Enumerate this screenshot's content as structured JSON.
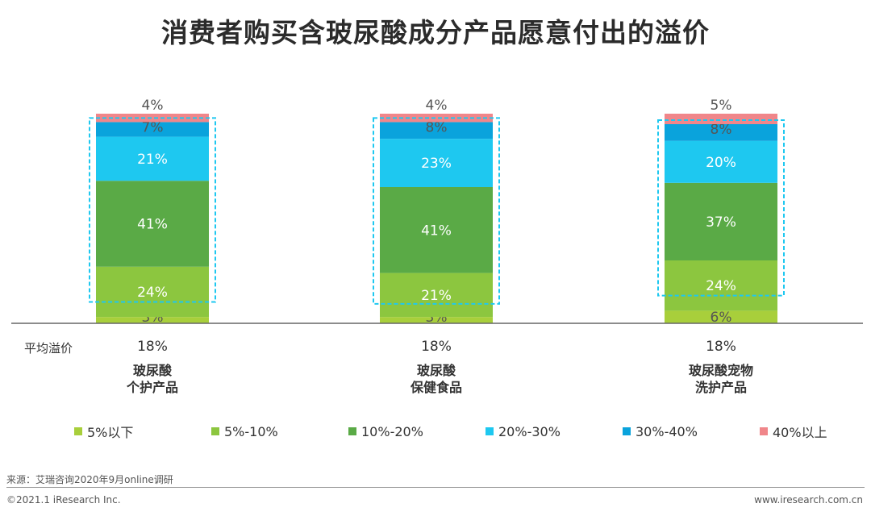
{
  "chart_data": {
    "type": "bar",
    "stacked": true,
    "normalized": true,
    "title": "消费者购买含玻尿酸成分产品愿意付出的溢价",
    "categories": [
      [
        "玻尿酸",
        "个护产品"
      ],
      [
        "玻尿酸",
        "保健食品"
      ],
      [
        "玻尿酸宠物",
        "洗护产品"
      ]
    ],
    "series": [
      {
        "name": "5%以下",
        "color": "#a8cf3b",
        "values": [
          3,
          3,
          6
        ],
        "labels": [
          "3%",
          "3%",
          "6%"
        ]
      },
      {
        "name": "5%-10%",
        "color": "#8cc63f",
        "values": [
          24,
          21,
          24
        ],
        "labels": [
          "24%",
          "21%",
          "24%"
        ]
      },
      {
        "name": "10%-20%",
        "color": "#5aaa46",
        "values": [
          41,
          41,
          37
        ],
        "labels": [
          "41%",
          "41%",
          "37%"
        ]
      },
      {
        "name": "20%-30%",
        "color": "#1ec8f0",
        "values": [
          21,
          23,
          20
        ],
        "labels": [
          "21%",
          "23%",
          "20%"
        ]
      },
      {
        "name": "30%-40%",
        "color": "#0aa3dc",
        "values": [
          7,
          8,
          8
        ],
        "labels": [
          "7%",
          "8%",
          "8%"
        ]
      },
      {
        "name": "40%以上",
        "color": "#f0868a",
        "values": [
          4,
          4,
          5
        ],
        "labels": [
          "4%",
          "4%",
          "5%"
        ]
      }
    ],
    "average": {
      "label": "平均溢价",
      "values": [
        "18%",
        "18%",
        "18%"
      ]
    },
    "highlight_box_color": "#1ec8f0",
    "legend_position": "bottom"
  },
  "footer": {
    "source": "来源：艾瑞咨询2020年9月online调研",
    "copyright": "©2021.1 iResearch Inc.",
    "website": "www.iresearch.com.cn"
  }
}
